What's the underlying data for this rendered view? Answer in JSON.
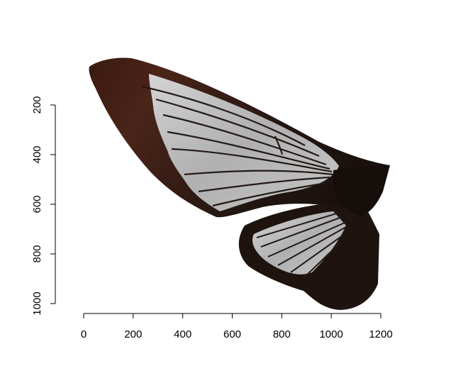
{
  "chart_data": {
    "type": "image",
    "title": "",
    "xlabel": "",
    "ylabel": "",
    "xlim": [
      0,
      1200
    ],
    "ylim": [
      1000,
      200
    ],
    "y_reversed": true,
    "x_ticks": [
      "0",
      "200",
      "400",
      "600",
      "800",
      "1000",
      "1200"
    ],
    "y_ticks": [
      "200",
      "400",
      "600",
      "800",
      "1000"
    ],
    "image_content": "butterfly-wing-specimen",
    "colors": {
      "wing_dark": "#1e120d",
      "wing_brown": "#4a2418",
      "membrane": "#b8b8b8",
      "vein": "#231a17"
    }
  }
}
